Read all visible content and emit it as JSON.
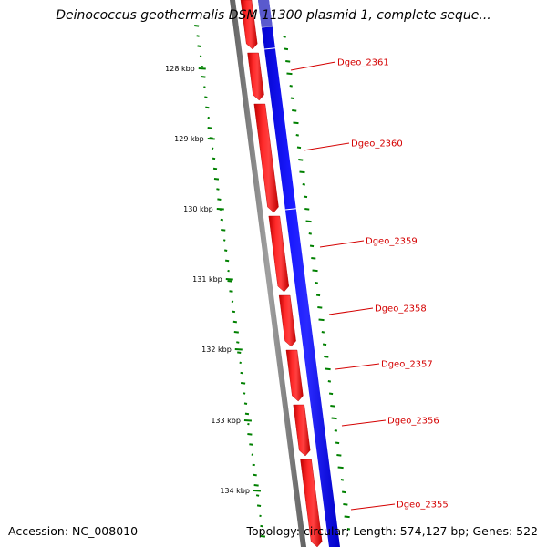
{
  "title": "Deinococcus geothermalis DSM 11300 plasmid 1, complete seque...",
  "footer": {
    "accession": "Accession: NC_008010",
    "summary": "Topology: circular; Length: 574,127 bp; Genes: 522"
  },
  "colors": {
    "gene_forward": "#ff0000",
    "gene_reverse": "#0000ff",
    "backbone": "#808080",
    "gc_skew": "#008000",
    "label": "#d40000"
  },
  "ticks": [
    {
      "label": "128 kbp",
      "kbp": 128
    },
    {
      "label": "129 kbp",
      "kbp": 129
    },
    {
      "label": "130 kbp",
      "kbp": 130
    },
    {
      "label": "131 kbp",
      "kbp": 131
    },
    {
      "label": "132 kbp",
      "kbp": 132
    },
    {
      "label": "133 kbp",
      "kbp": 133
    },
    {
      "label": "134 kbp",
      "kbp": 134
    }
  ],
  "genes": [
    {
      "label": "Dgeo_2361"
    },
    {
      "label": "Dgeo_2360"
    },
    {
      "label": "Dgeo_2359"
    },
    {
      "label": "Dgeo_2358"
    },
    {
      "label": "Dgeo_2357"
    },
    {
      "label": "Dgeo_2356"
    },
    {
      "label": "Dgeo_2355"
    }
  ]
}
